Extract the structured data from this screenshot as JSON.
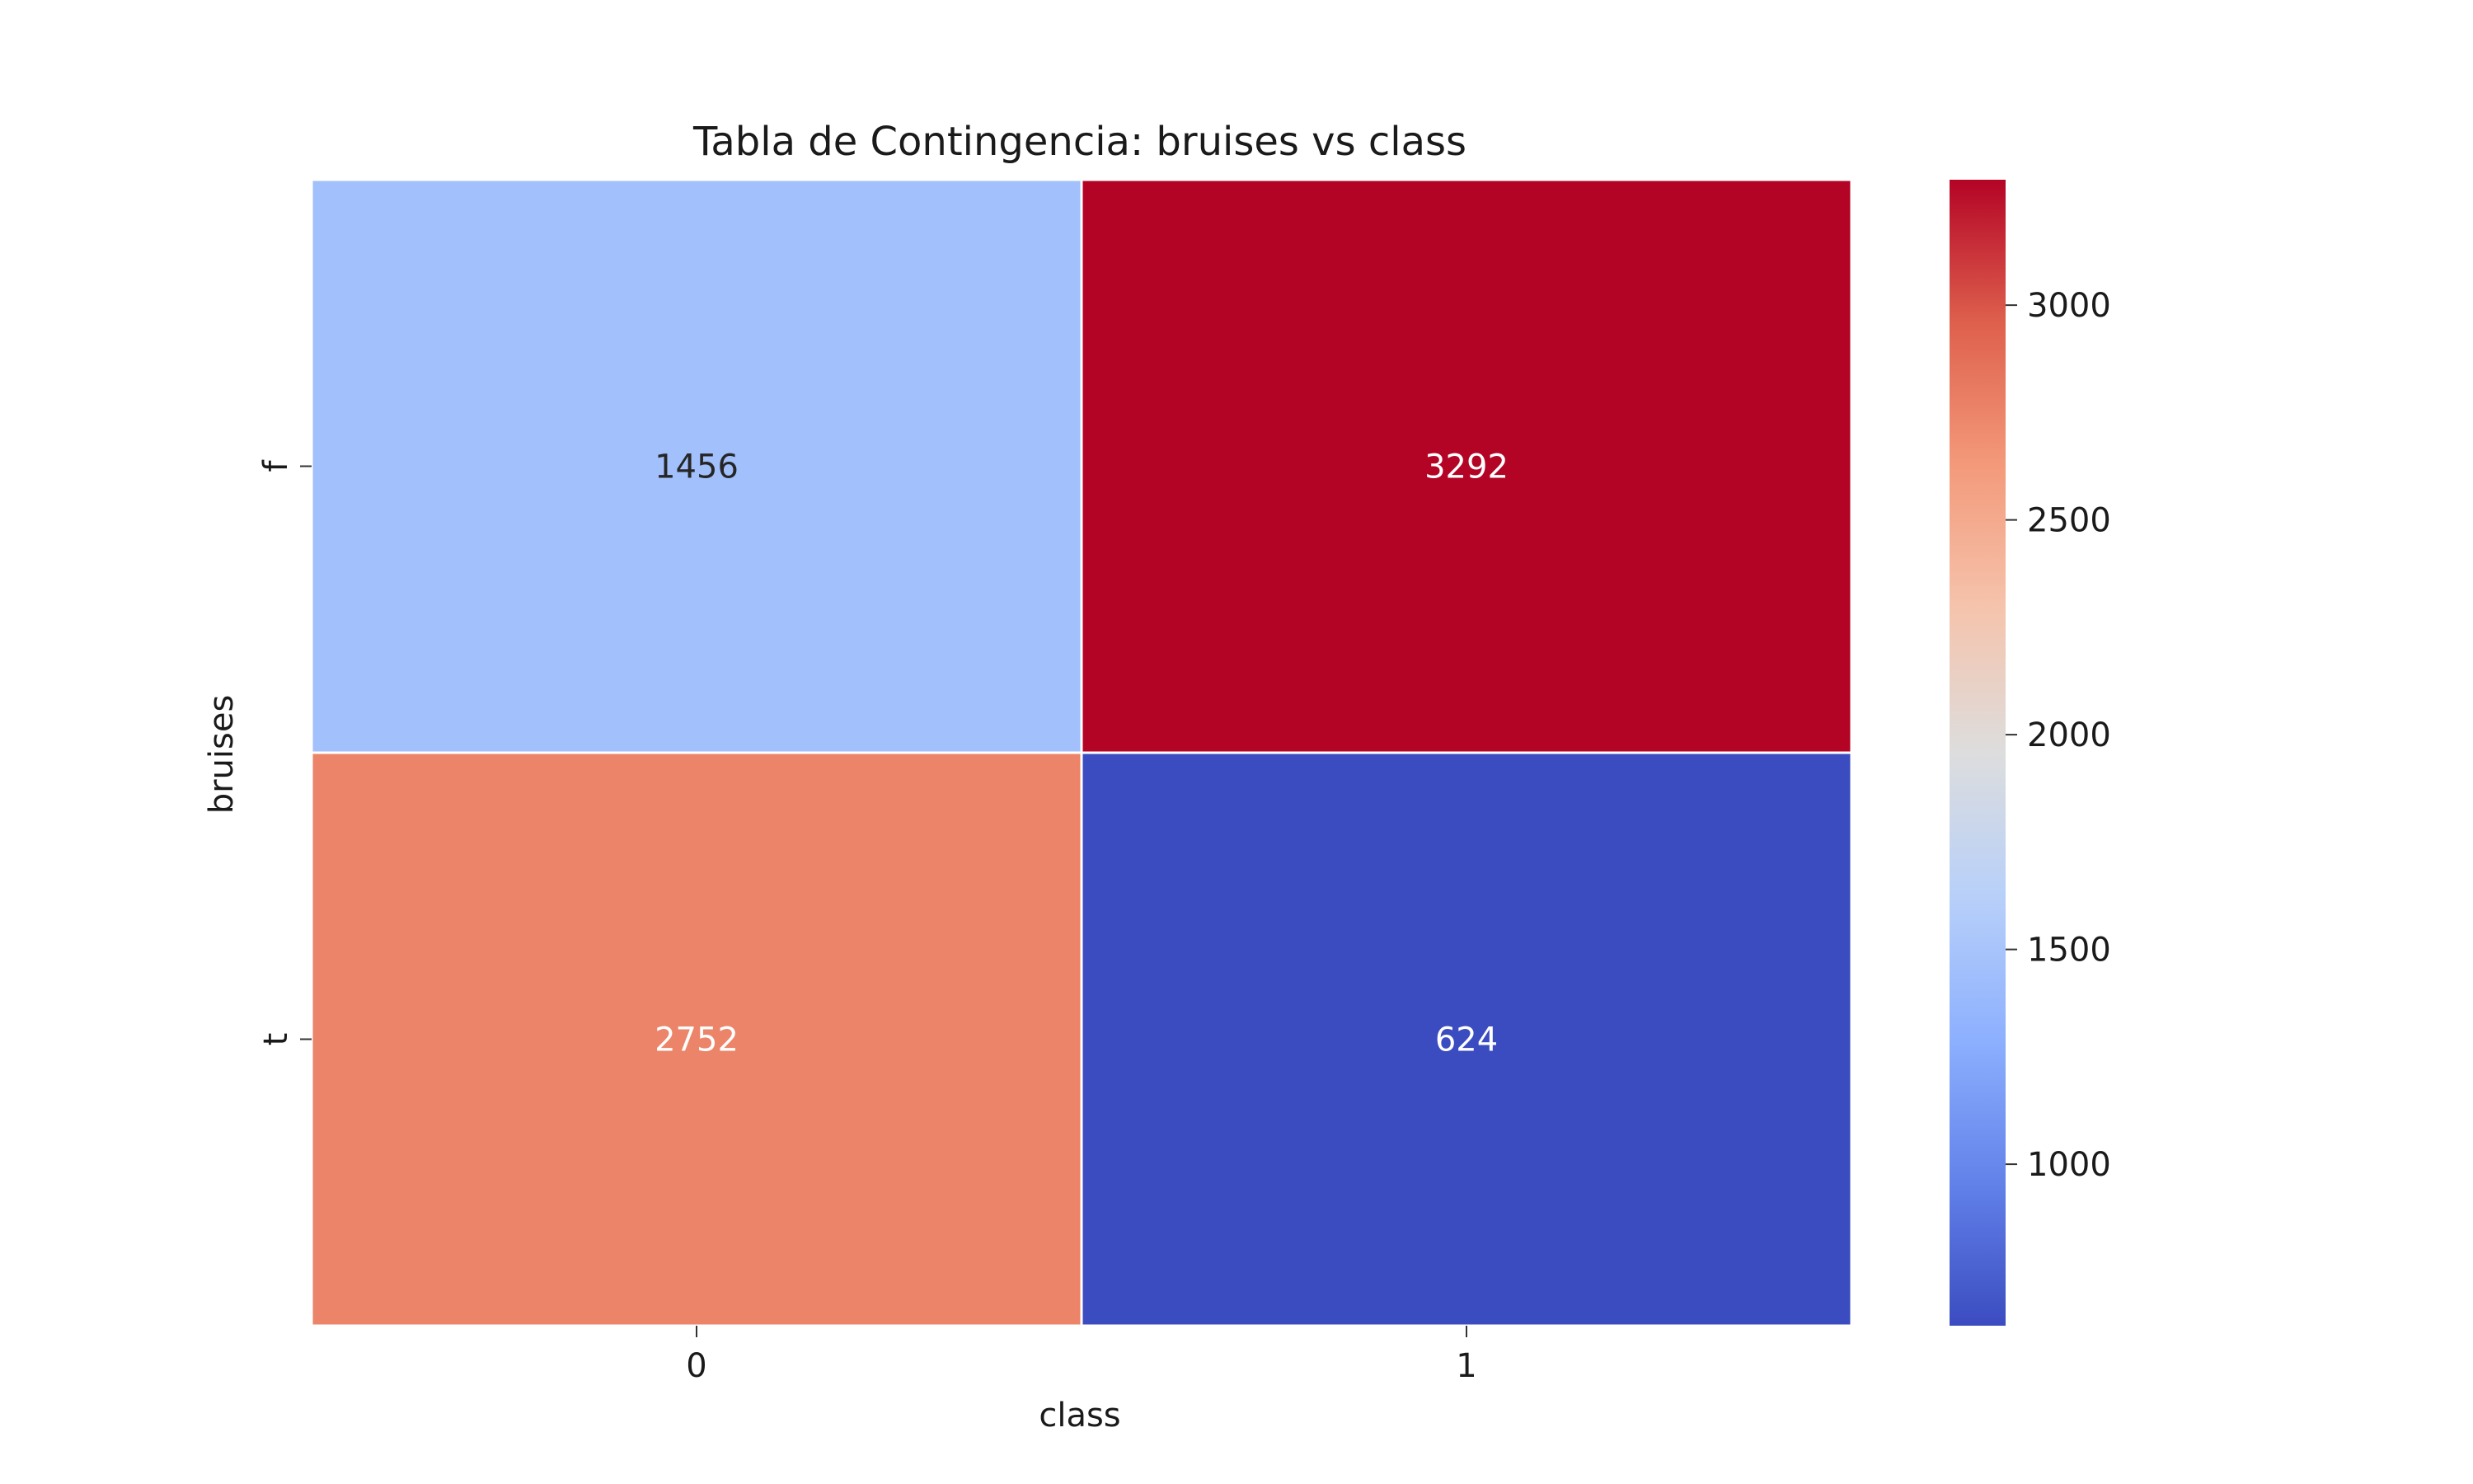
{
  "chart_data": {
    "type": "heatmap",
    "title": "Tabla de Contingencia: bruises vs class",
    "xlabel": "class",
    "ylabel": "bruises",
    "x_categories": [
      "0",
      "1"
    ],
    "y_categories": [
      "f",
      "t"
    ],
    "values": [
      [
        1456,
        3292
      ],
      [
        2752,
        624
      ]
    ],
    "colormap": "coolwarm",
    "colorbar": {
      "min": 624,
      "max": 3292,
      "ticks": [
        1000,
        1500,
        2000,
        2500,
        3000
      ],
      "tick_labels": [
        "1000",
        "1500",
        "2000",
        "2500",
        "3000"
      ]
    }
  }
}
